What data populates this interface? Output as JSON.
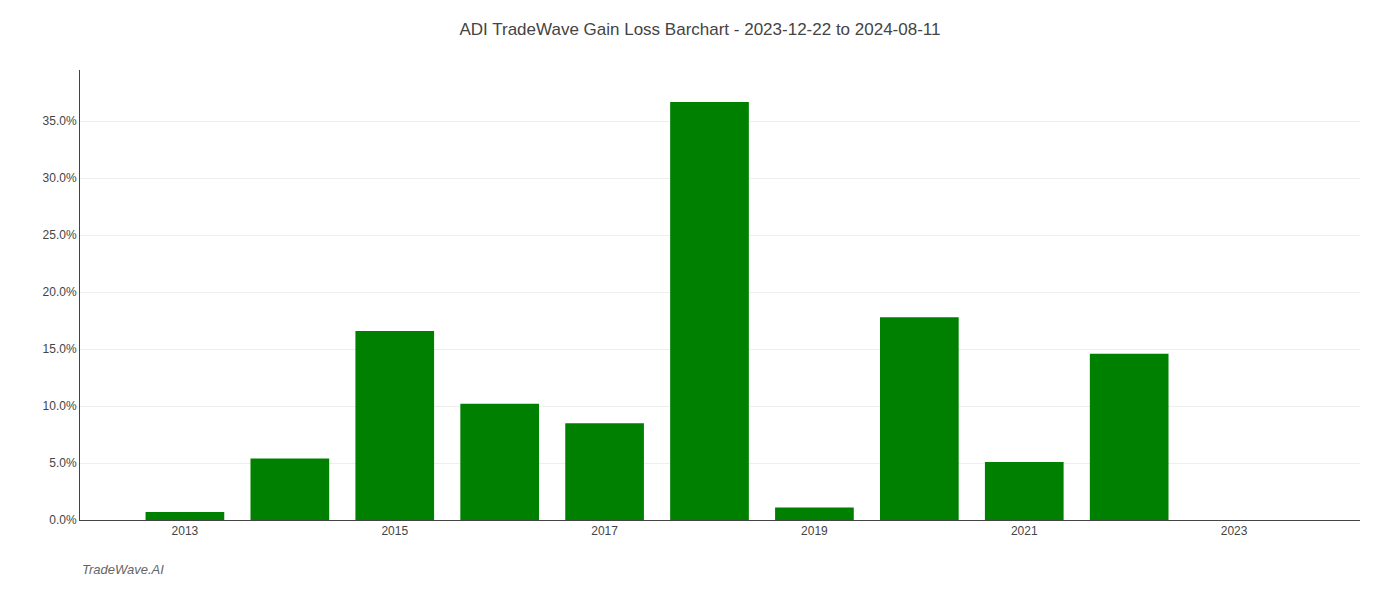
{
  "chart_data": {
    "type": "bar",
    "title": "ADI TradeWave Gain Loss Barchart - 2023-12-22 to 2024-08-11",
    "annotations": [
      "TradeWave.AI"
    ],
    "x": [
      2013,
      2014,
      2015,
      2016,
      2017,
      2018,
      2019,
      2020,
      2021,
      2022
    ],
    "values": [
      0.007,
      0.054,
      0.166,
      0.102,
      0.085,
      0.367,
      0.011,
      0.178,
      0.051,
      0.146
    ],
    "color": "#008000",
    "xlim": [
      2012.0,
      2024.2
    ],
    "xticks": [
      2013,
      2015,
      2017,
      2019,
      2021,
      2023
    ],
    "ylim": [
      0,
      0.395
    ],
    "yticks": [
      {
        "value": 0.0,
        "label": "0.0%"
      },
      {
        "value": 0.05,
        "label": "5.0%"
      },
      {
        "value": 0.1,
        "label": "10.0%"
      },
      {
        "value": 0.15,
        "label": "15.0%"
      },
      {
        "value": 0.2,
        "label": "20.0%"
      },
      {
        "value": 0.25,
        "label": "25.0%"
      },
      {
        "value": 0.3,
        "label": "30.0%"
      },
      {
        "value": 0.35,
        "label": "35.0%"
      }
    ],
    "grid": true
  }
}
